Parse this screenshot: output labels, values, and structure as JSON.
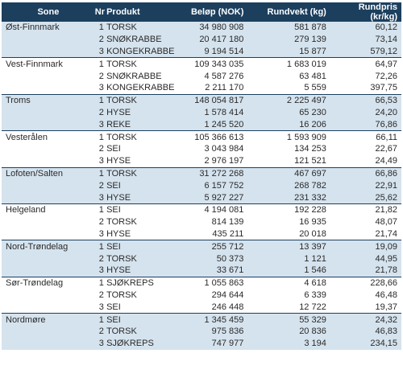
{
  "headers": {
    "sone": "Sone",
    "nr": "Nr",
    "produkt": "Produkt",
    "belop": "Beløp (NOK)",
    "rundvekt": "Rundvekt (kg)",
    "rundpris": "Rundpris (kr/kg)"
  },
  "groups": [
    {
      "sone": "Øst-Finnmark",
      "rows": [
        {
          "nr": "1",
          "produkt": "TORSK",
          "belop": "34 980 908",
          "rundvekt": "581 878",
          "rundpris": "60,12"
        },
        {
          "nr": "2",
          "produkt": "SNØKRABBE",
          "belop": "20 417 180",
          "rundvekt": "279 139",
          "rundpris": "73,14"
        },
        {
          "nr": "3",
          "produkt": "KONGEKRABBE",
          "belop": "9 194 514",
          "rundvekt": "15 877",
          "rundpris": "579,12"
        }
      ]
    },
    {
      "sone": "Vest-Finnmark",
      "rows": [
        {
          "nr": "1",
          "produkt": "TORSK",
          "belop": "109 343 035",
          "rundvekt": "1 683 019",
          "rundpris": "64,97"
        },
        {
          "nr": "2",
          "produkt": "SNØKRABBE",
          "belop": "4 587 276",
          "rundvekt": "63 481",
          "rundpris": "72,26"
        },
        {
          "nr": "3",
          "produkt": "KONGEKRABBE",
          "belop": "2 211 170",
          "rundvekt": "5 559",
          "rundpris": "397,75"
        }
      ]
    },
    {
      "sone": "Troms",
      "rows": [
        {
          "nr": "1",
          "produkt": "TORSK",
          "belop": "148 054 817",
          "rundvekt": "2 225 497",
          "rundpris": "66,53"
        },
        {
          "nr": "2",
          "produkt": "HYSE",
          "belop": "1 578 414",
          "rundvekt": "65 230",
          "rundpris": "24,20"
        },
        {
          "nr": "3",
          "produkt": "REKE",
          "belop": "1 245 520",
          "rundvekt": "16 206",
          "rundpris": "76,86"
        }
      ]
    },
    {
      "sone": "Vesterålen",
      "rows": [
        {
          "nr": "1",
          "produkt": "TORSK",
          "belop": "105 366 613",
          "rundvekt": "1 593 909",
          "rundpris": "66,11"
        },
        {
          "nr": "2",
          "produkt": "SEI",
          "belop": "3 043 984",
          "rundvekt": "134 253",
          "rundpris": "22,67"
        },
        {
          "nr": "3",
          "produkt": "HYSE",
          "belop": "2 976 197",
          "rundvekt": "121 521",
          "rundpris": "24,49"
        }
      ]
    },
    {
      "sone": "Lofoten/Salten",
      "rows": [
        {
          "nr": "1",
          "produkt": "TORSK",
          "belop": "31 272 268",
          "rundvekt": "467 697",
          "rundpris": "66,86"
        },
        {
          "nr": "2",
          "produkt": "SEI",
          "belop": "6 157 752",
          "rundvekt": "268 782",
          "rundpris": "22,91"
        },
        {
          "nr": "3",
          "produkt": "HYSE",
          "belop": "5 927 227",
          "rundvekt": "231 332",
          "rundpris": "25,62"
        }
      ]
    },
    {
      "sone": "Helgeland",
      "rows": [
        {
          "nr": "1",
          "produkt": "SEI",
          "belop": "4 194 081",
          "rundvekt": "192 228",
          "rundpris": "21,82"
        },
        {
          "nr": "2",
          "produkt": "TORSK",
          "belop": "814 139",
          "rundvekt": "16 935",
          "rundpris": "48,07"
        },
        {
          "nr": "3",
          "produkt": "HYSE",
          "belop": "435 211",
          "rundvekt": "20 018",
          "rundpris": "21,74"
        }
      ]
    },
    {
      "sone": "Nord-Trøndelag",
      "rows": [
        {
          "nr": "1",
          "produkt": "SEI",
          "belop": "255 712",
          "rundvekt": "13 397",
          "rundpris": "19,09"
        },
        {
          "nr": "2",
          "produkt": "TORSK",
          "belop": "50 373",
          "rundvekt": "1 121",
          "rundpris": "44,95"
        },
        {
          "nr": "3",
          "produkt": "HYSE",
          "belop": "33 671",
          "rundvekt": "1 546",
          "rundpris": "21,78"
        }
      ]
    },
    {
      "sone": "Sør-Trøndelag",
      "rows": [
        {
          "nr": "1",
          "produkt": "SJØKREPS",
          "belop": "1 055 863",
          "rundvekt": "4 618",
          "rundpris": "228,66"
        },
        {
          "nr": "2",
          "produkt": "TORSK",
          "belop": "294 644",
          "rundvekt": "6 339",
          "rundpris": "46,48"
        },
        {
          "nr": "3",
          "produkt": "SEI",
          "belop": "246 448",
          "rundvekt": "12 722",
          "rundpris": "19,37"
        }
      ]
    },
    {
      "sone": "Nordmøre",
      "rows": [
        {
          "nr": "1",
          "produkt": "SEI",
          "belop": "1 345 459",
          "rundvekt": "55 329",
          "rundpris": "24,32"
        },
        {
          "nr": "2",
          "produkt": "TORSK",
          "belop": "975 836",
          "rundvekt": "20 836",
          "rundpris": "46,83"
        },
        {
          "nr": "3",
          "produkt": "SJØKREPS",
          "belop": "747 977",
          "rundvekt": "3 194",
          "rundpris": "234,15"
        }
      ]
    }
  ]
}
